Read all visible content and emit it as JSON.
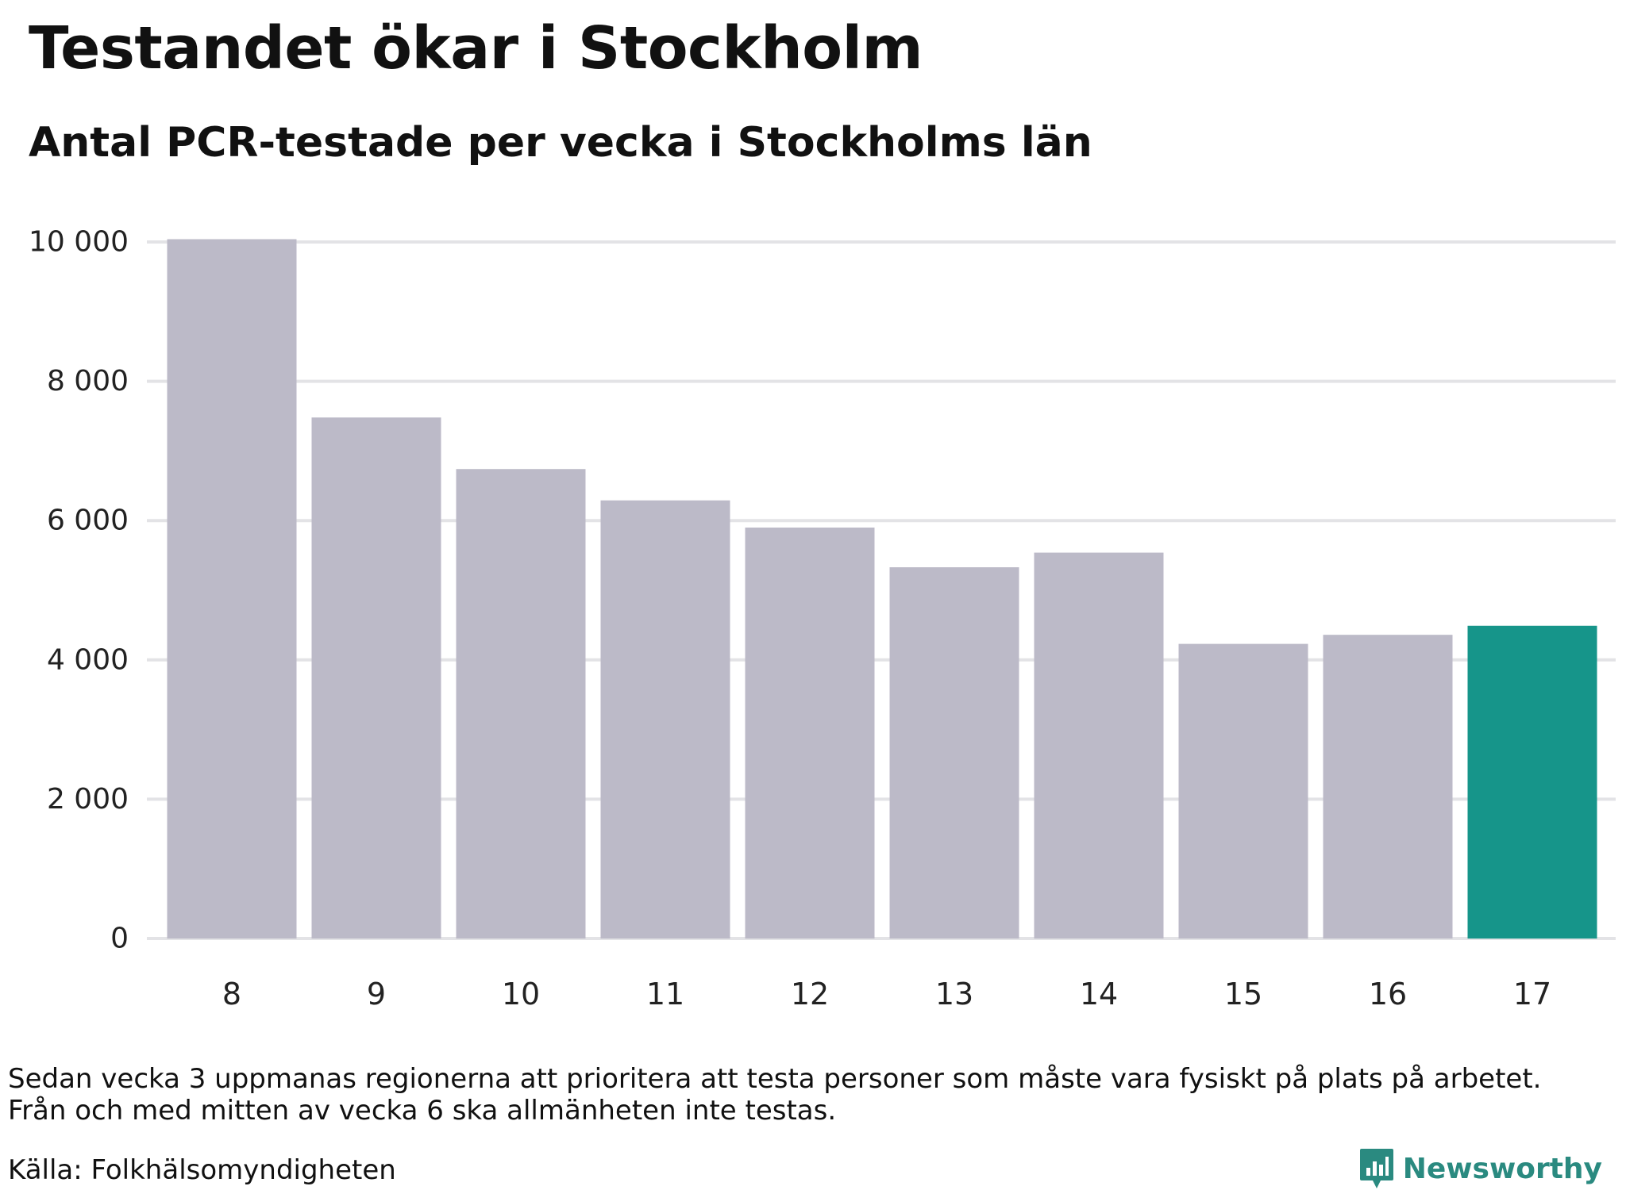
{
  "header": {
    "title": "Testandet ökar i Stockholm",
    "subtitle": "Antal PCR-testade per vecka i Stockholms län"
  },
  "chart_data": {
    "type": "bar",
    "title": "Testandet ökar i Stockholm",
    "subtitle": "Antal PCR-testade per vecka i Stockholms län",
    "categories": [
      "8",
      "9",
      "10",
      "11",
      "12",
      "13",
      "14",
      "15",
      "16",
      "17"
    ],
    "values": [
      10040,
      7480,
      6740,
      6290,
      5900,
      5330,
      5540,
      4230,
      4360,
      4490
    ],
    "ylim": [
      0,
      10000
    ],
    "yticks": [
      0,
      2000,
      4000,
      6000,
      8000,
      10000
    ],
    "ytick_labels": [
      "0",
      "2 000",
      "4 000",
      "6 000",
      "8 000",
      "10 000"
    ],
    "grid": true,
    "xlabel": "",
    "ylabel": "",
    "highlight_index": 9,
    "colors": {
      "bar": "#bcbac8",
      "highlight": "#16958a",
      "grid": "#e3e3e6"
    }
  },
  "footer": {
    "note_line1": "Sedan vecka 3 uppmanas regionerna att prioritera att testa personer som måste vara fysiskt på plats på arbetet.",
    "note_line2": "Från och med mitten av vecka 6 ska allmänheten inte testas.",
    "source": "Källa: Folkhälsomyndigheten",
    "brand": "Newsworthy",
    "brand_color": "#2a8a80"
  }
}
